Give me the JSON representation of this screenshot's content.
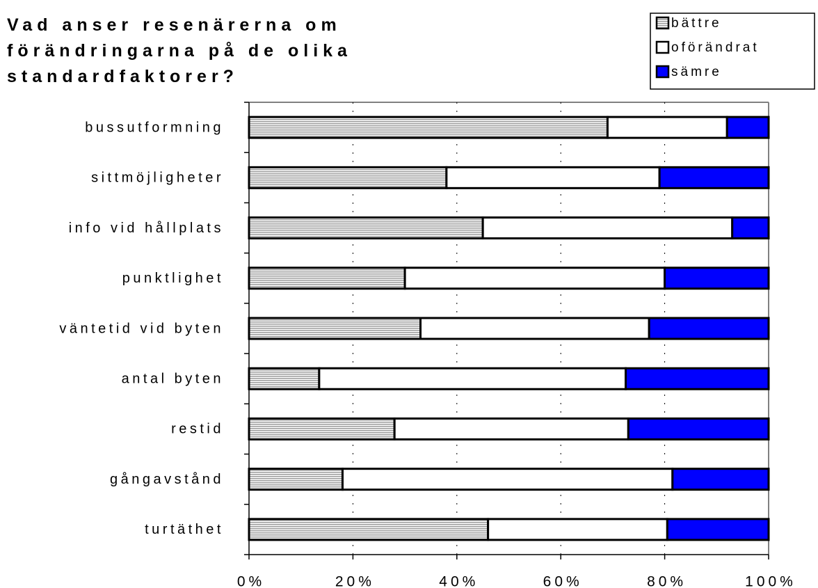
{
  "chart_data": {
    "type": "stacked_bar_horizontal",
    "title": [
      "Vad anser resenärerna om",
      "förändringarna på de olika",
      "standardfaktorer?"
    ],
    "categories": [
      "bussutformning",
      "sittmöjligheter",
      "info vid hållplats",
      "punktlighet",
      "väntetid vid byten",
      "antal byten",
      "restid",
      "gångavstånd",
      "turtäthet"
    ],
    "series": [
      {
        "name": "bättre",
        "color": "#a0a0a0",
        "values": [
          69,
          38,
          45,
          30,
          33,
          13.5,
          28,
          18,
          46
        ]
      },
      {
        "name": "oförändrat",
        "color": "#ffffff",
        "values": [
          23,
          41,
          48,
          50,
          44,
          59,
          45,
          63.5,
          34.5
        ]
      },
      {
        "name": "sämre",
        "color": "#0000ff",
        "values": [
          8,
          21,
          7,
          20,
          23,
          27.5,
          27,
          18.5,
          19.5
        ]
      }
    ],
    "xlim": [
      0,
      100
    ],
    "xticks": [
      {
        "value": 0,
        "label": "0%"
      },
      {
        "value": 20,
        "label": "20%"
      },
      {
        "value": 40,
        "label": "40%"
      },
      {
        "value": 60,
        "label": "60%"
      },
      {
        "value": 80,
        "label": "80%"
      },
      {
        "value": 100,
        "label": "100%"
      }
    ],
    "grid": true,
    "legend": "top-right"
  }
}
